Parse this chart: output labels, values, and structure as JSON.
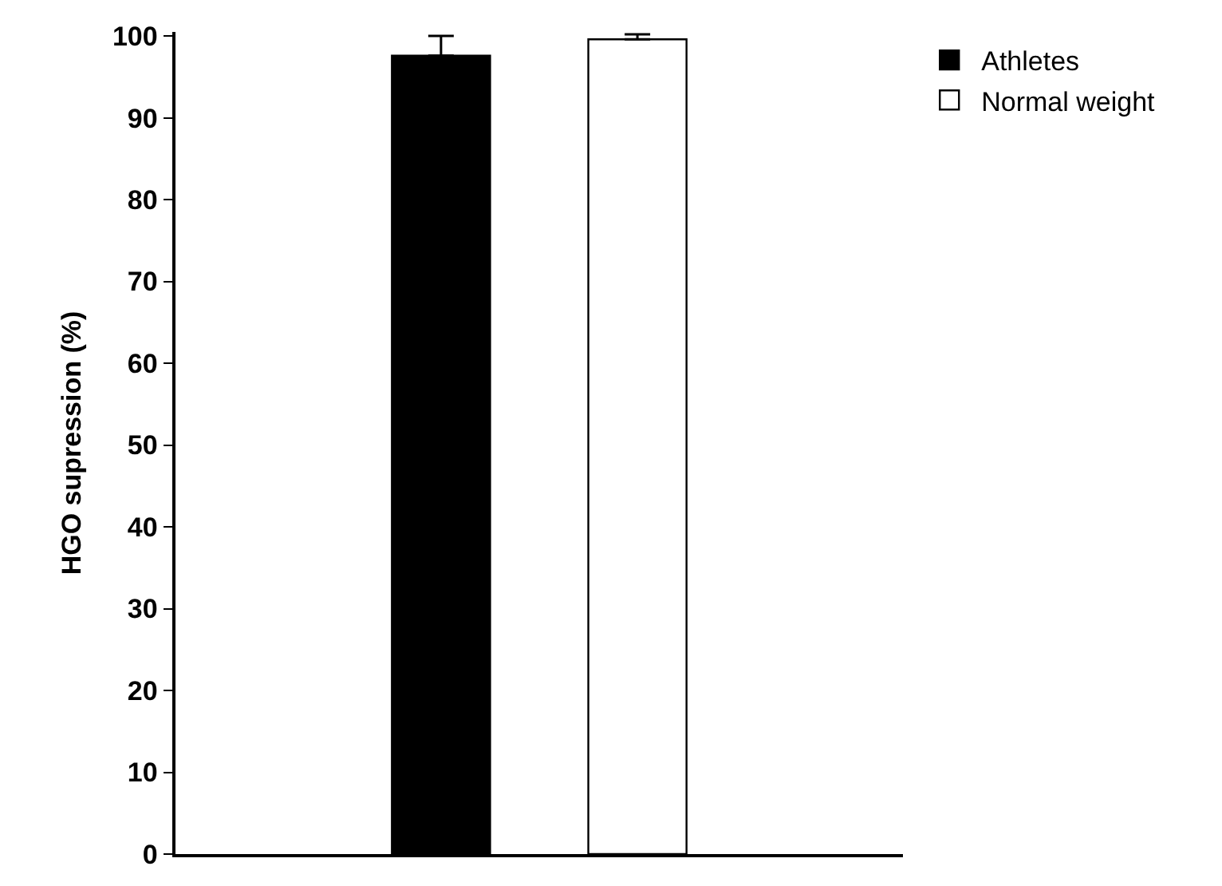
{
  "chart_data": {
    "type": "bar",
    "ylabel": "HGO supression (%)",
    "categories": [
      null
    ],
    "series": [
      {
        "name": "Athletes",
        "color": "#000000",
        "values": [
          97.6
        ],
        "errors": [
          [
            97.6,
            100.0
          ]
        ]
      },
      {
        "name": "Normal weight",
        "color": "#ffffff",
        "values": [
          99.6
        ],
        "errors": [
          [
            99.6,
            100.2
          ]
        ]
      }
    ],
    "ylim": [
      0,
      100.5
    ],
    "yticks": [
      0,
      10,
      20,
      30,
      40,
      50,
      60,
      70,
      80,
      90,
      100
    ],
    "grid": false,
    "legend": "top right"
  }
}
